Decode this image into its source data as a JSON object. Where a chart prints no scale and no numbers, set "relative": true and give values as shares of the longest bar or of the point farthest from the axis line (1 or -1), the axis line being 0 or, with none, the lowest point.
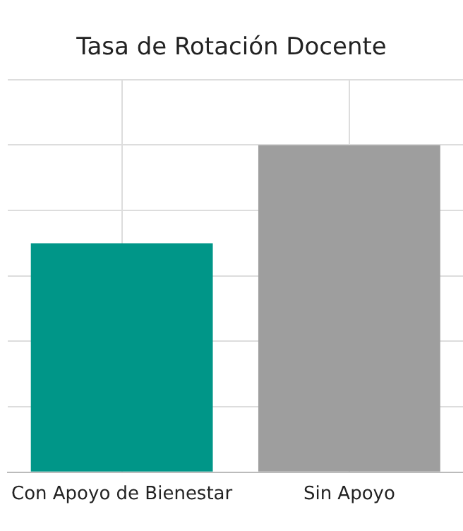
{
  "chart_data": {
    "type": "bar",
    "title": "Tasa de Rotación Docente",
    "categories": [
      "Con Apoyo de Bienestar",
      "Sin Apoyo"
    ],
    "series": [
      {
        "colors": [
          "#009688",
          "#9e9e9e"
        ],
        "values": [
          0.7,
          1
        ]
      }
    ],
    "relative": true,
    "grid": true,
    "legend": false
  }
}
